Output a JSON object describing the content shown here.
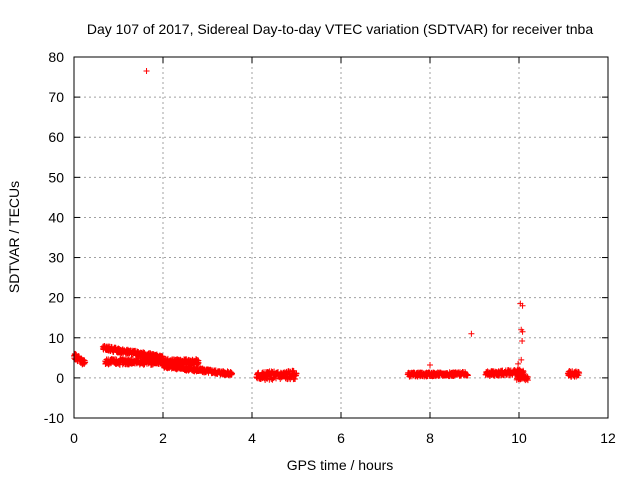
{
  "chart_data": {
    "type": "scatter",
    "title": "Day 107 of 2017, Sidereal Day-to-day VTEC variation (SDTVAR) for receiver tnba",
    "xlabel": "GPS time / hours",
    "ylabel": "SDTVAR / TECUs",
    "xlim": [
      0,
      12
    ],
    "ylim": [
      -10,
      80
    ],
    "xticks": [
      0,
      2,
      4,
      6,
      8,
      10,
      12
    ],
    "yticks": [
      -10,
      0,
      10,
      20,
      30,
      40,
      50,
      60,
      70,
      80
    ],
    "grid": true,
    "marker": "+",
    "marker_color": "#ff0000",
    "series": [
      {
        "name": "SDTVAR",
        "outlier_points": [
          {
            "x": 1.63,
            "y": 76.5
          },
          {
            "x": 0.02,
            "y": 6.0
          },
          {
            "x": 8.0,
            "y": 3.2
          },
          {
            "x": 8.93,
            "y": 11.0
          },
          {
            "x": 10.03,
            "y": 18.5
          },
          {
            "x": 10.08,
            "y": 18.0
          },
          {
            "x": 10.05,
            "y": 12.0
          },
          {
            "x": 10.08,
            "y": 11.5
          },
          {
            "x": 10.07,
            "y": 9.2
          },
          {
            "x": 10.05,
            "y": 4.5
          },
          {
            "x": 9.98,
            "y": 3.5
          }
        ],
        "clusters": [
          {
            "x_start": 0.0,
            "x_end": 0.25,
            "y_start": 5.5,
            "y_end": 3.5,
            "spread": 1.5
          },
          {
            "x_start": 0.65,
            "x_end": 2.0,
            "y_start": 7.5,
            "y_end": 5.0,
            "spread": 1.2
          },
          {
            "x_start": 0.7,
            "x_end": 2.8,
            "y_start": 4.0,
            "y_end": 4.0,
            "spread": 1.5
          },
          {
            "x_start": 2.0,
            "x_end": 3.55,
            "y_start": 3.0,
            "y_end": 1.0,
            "spread": 1.0
          },
          {
            "x_start": 4.1,
            "x_end": 5.0,
            "y_start": 0.5,
            "y_end": 0.8,
            "spread": 2.2
          },
          {
            "x_start": 7.5,
            "x_end": 8.85,
            "y_start": 0.8,
            "y_end": 1.0,
            "spread": 1.0
          },
          {
            "x_start": 9.25,
            "x_end": 10.1,
            "y_start": 1.0,
            "y_end": 1.5,
            "spread": 1.3
          },
          {
            "x_start": 9.95,
            "x_end": 10.2,
            "y_start": 0.0,
            "y_end": 0.0,
            "spread": 1.2
          },
          {
            "x_start": 11.1,
            "x_end": 11.35,
            "y_start": 1.0,
            "y_end": 1.0,
            "spread": 1.5
          }
        ]
      }
    ]
  }
}
